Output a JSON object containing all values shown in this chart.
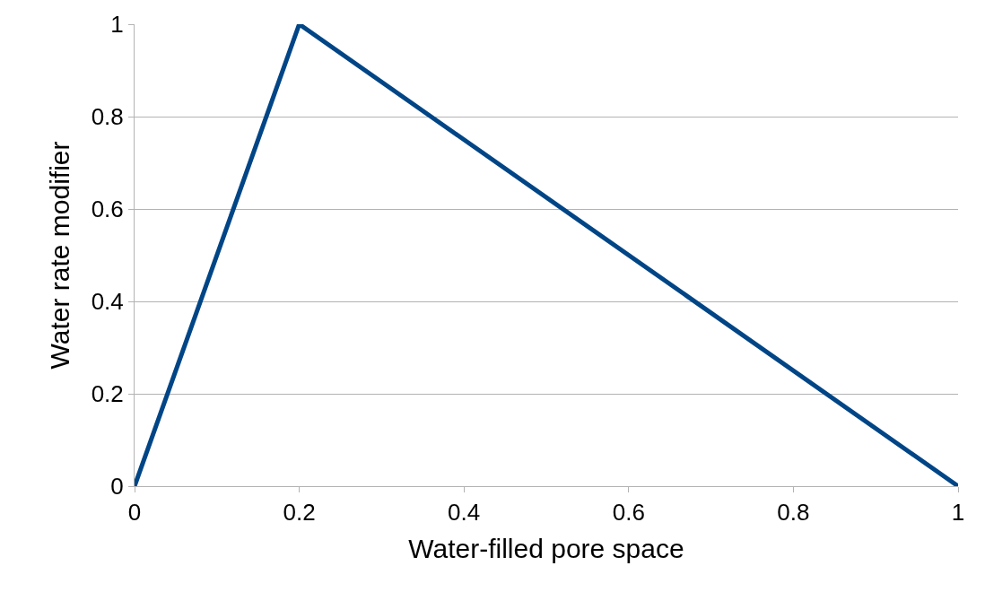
{
  "chart_data": {
    "type": "line",
    "xlabel": "Water-filled pore space",
    "ylabel": "Water rate modifier",
    "x": [
      0,
      0.2,
      1
    ],
    "series": [
      {
        "color": "#004586",
        "values": [
          0,
          1,
          0
        ]
      }
    ],
    "xlim": [
      0,
      1
    ],
    "xticks": [
      0,
      0.2,
      0.4,
      0.6,
      0.8,
      1
    ],
    "ylim": [
      0,
      1
    ],
    "yticks": [
      0,
      0.2,
      0.4,
      0.6,
      0.8,
      1
    ],
    "grid": "y",
    "marker": "none",
    "line_style": "solid"
  }
}
